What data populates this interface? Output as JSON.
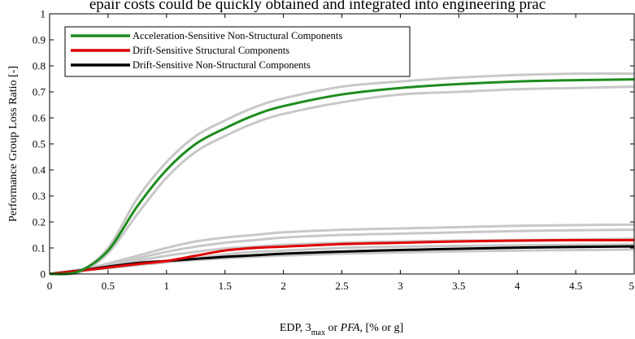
{
  "caption_fragment": "epair costs could be quickly obtained and integrated into engineering prac",
  "chart_data": {
    "type": "line",
    "xlabel_parts": [
      "EDP, ",
      "3",
      "max",
      " or ",
      "PFA",
      ", [% or g]"
    ],
    "ylabel": "Performance Group Loss Ratio [-]",
    "xlim": [
      0,
      5
    ],
    "ylim": [
      0,
      1
    ],
    "x_ticks": [
      "0",
      "0.5",
      "1",
      "1.5",
      "2",
      "2.5",
      "3",
      "3.5",
      "4",
      "4.5",
      "5"
    ],
    "y_ticks": [
      "0",
      "0.1",
      "0.2",
      "0.3",
      "0.4",
      "0.5",
      "0.6",
      "0.7",
      "0.8",
      "0.9",
      "1"
    ],
    "grid": false,
    "legend_position": "top-left",
    "x": [
      0,
      0.25,
      0.5,
      0.75,
      1.0,
      1.25,
      1.5,
      1.75,
      2.0,
      2.5,
      3.0,
      3.5,
      4.0,
      4.5,
      5.0
    ],
    "series": [
      {
        "name": "Acceleration-Sensitive Non-Structural Components",
        "color": "#1e8c1e",
        "values": [
          0,
          0.01,
          0.09,
          0.26,
          0.4,
          0.5,
          0.56,
          0.61,
          0.645,
          0.69,
          0.715,
          0.73,
          0.74,
          0.745,
          0.748
        ]
      },
      {
        "name": "Drift-Sensitive Structural Components",
        "color": "#e00000",
        "values": [
          0,
          0.012,
          0.025,
          0.038,
          0.05,
          0.07,
          0.09,
          0.1,
          0.105,
          0.115,
          0.12,
          0.125,
          0.128,
          0.13,
          0.13
        ]
      },
      {
        "name": "Drift-Sensitive Non-Structural Components",
        "color": "#000000",
        "values": [
          0,
          0.013,
          0.028,
          0.042,
          0.05,
          0.058,
          0.066,
          0.072,
          0.078,
          0.086,
          0.092,
          0.097,
          0.101,
          0.104,
          0.106
        ]
      }
    ],
    "background_bands": {
      "color": "#c8c8c8",
      "series": [
        [
          0,
          0.01,
          0.1,
          0.29,
          0.43,
          0.53,
          0.59,
          0.64,
          0.675,
          0.72,
          0.74,
          0.755,
          0.765,
          0.77,
          0.77
        ],
        [
          0,
          0.005,
          0.08,
          0.23,
          0.37,
          0.47,
          0.53,
          0.58,
          0.615,
          0.66,
          0.69,
          0.7,
          0.71,
          0.715,
          0.72
        ],
        [
          0,
          0.016,
          0.04,
          0.07,
          0.1,
          0.125,
          0.14,
          0.15,
          0.16,
          0.17,
          0.175,
          0.18,
          0.185,
          0.188,
          0.19
        ],
        [
          0,
          0.015,
          0.035,
          0.06,
          0.085,
          0.105,
          0.12,
          0.13,
          0.14,
          0.15,
          0.155,
          0.16,
          0.165,
          0.168,
          0.17
        ],
        [
          0,
          0.014,
          0.03,
          0.05,
          0.07,
          0.085,
          0.098,
          0.105,
          0.112,
          0.12,
          0.125,
          0.128,
          0.13,
          0.132,
          0.135
        ],
        [
          0,
          0.011,
          0.022,
          0.034,
          0.045,
          0.06,
          0.075,
          0.085,
          0.09,
          0.1,
          0.105,
          0.108,
          0.11,
          0.112,
          0.113
        ],
        [
          0,
          0.012,
          0.024,
          0.036,
          0.046,
          0.054,
          0.06,
          0.066,
          0.071,
          0.078,
          0.083,
          0.087,
          0.09,
          0.092,
          0.094
        ]
      ]
    }
  }
}
